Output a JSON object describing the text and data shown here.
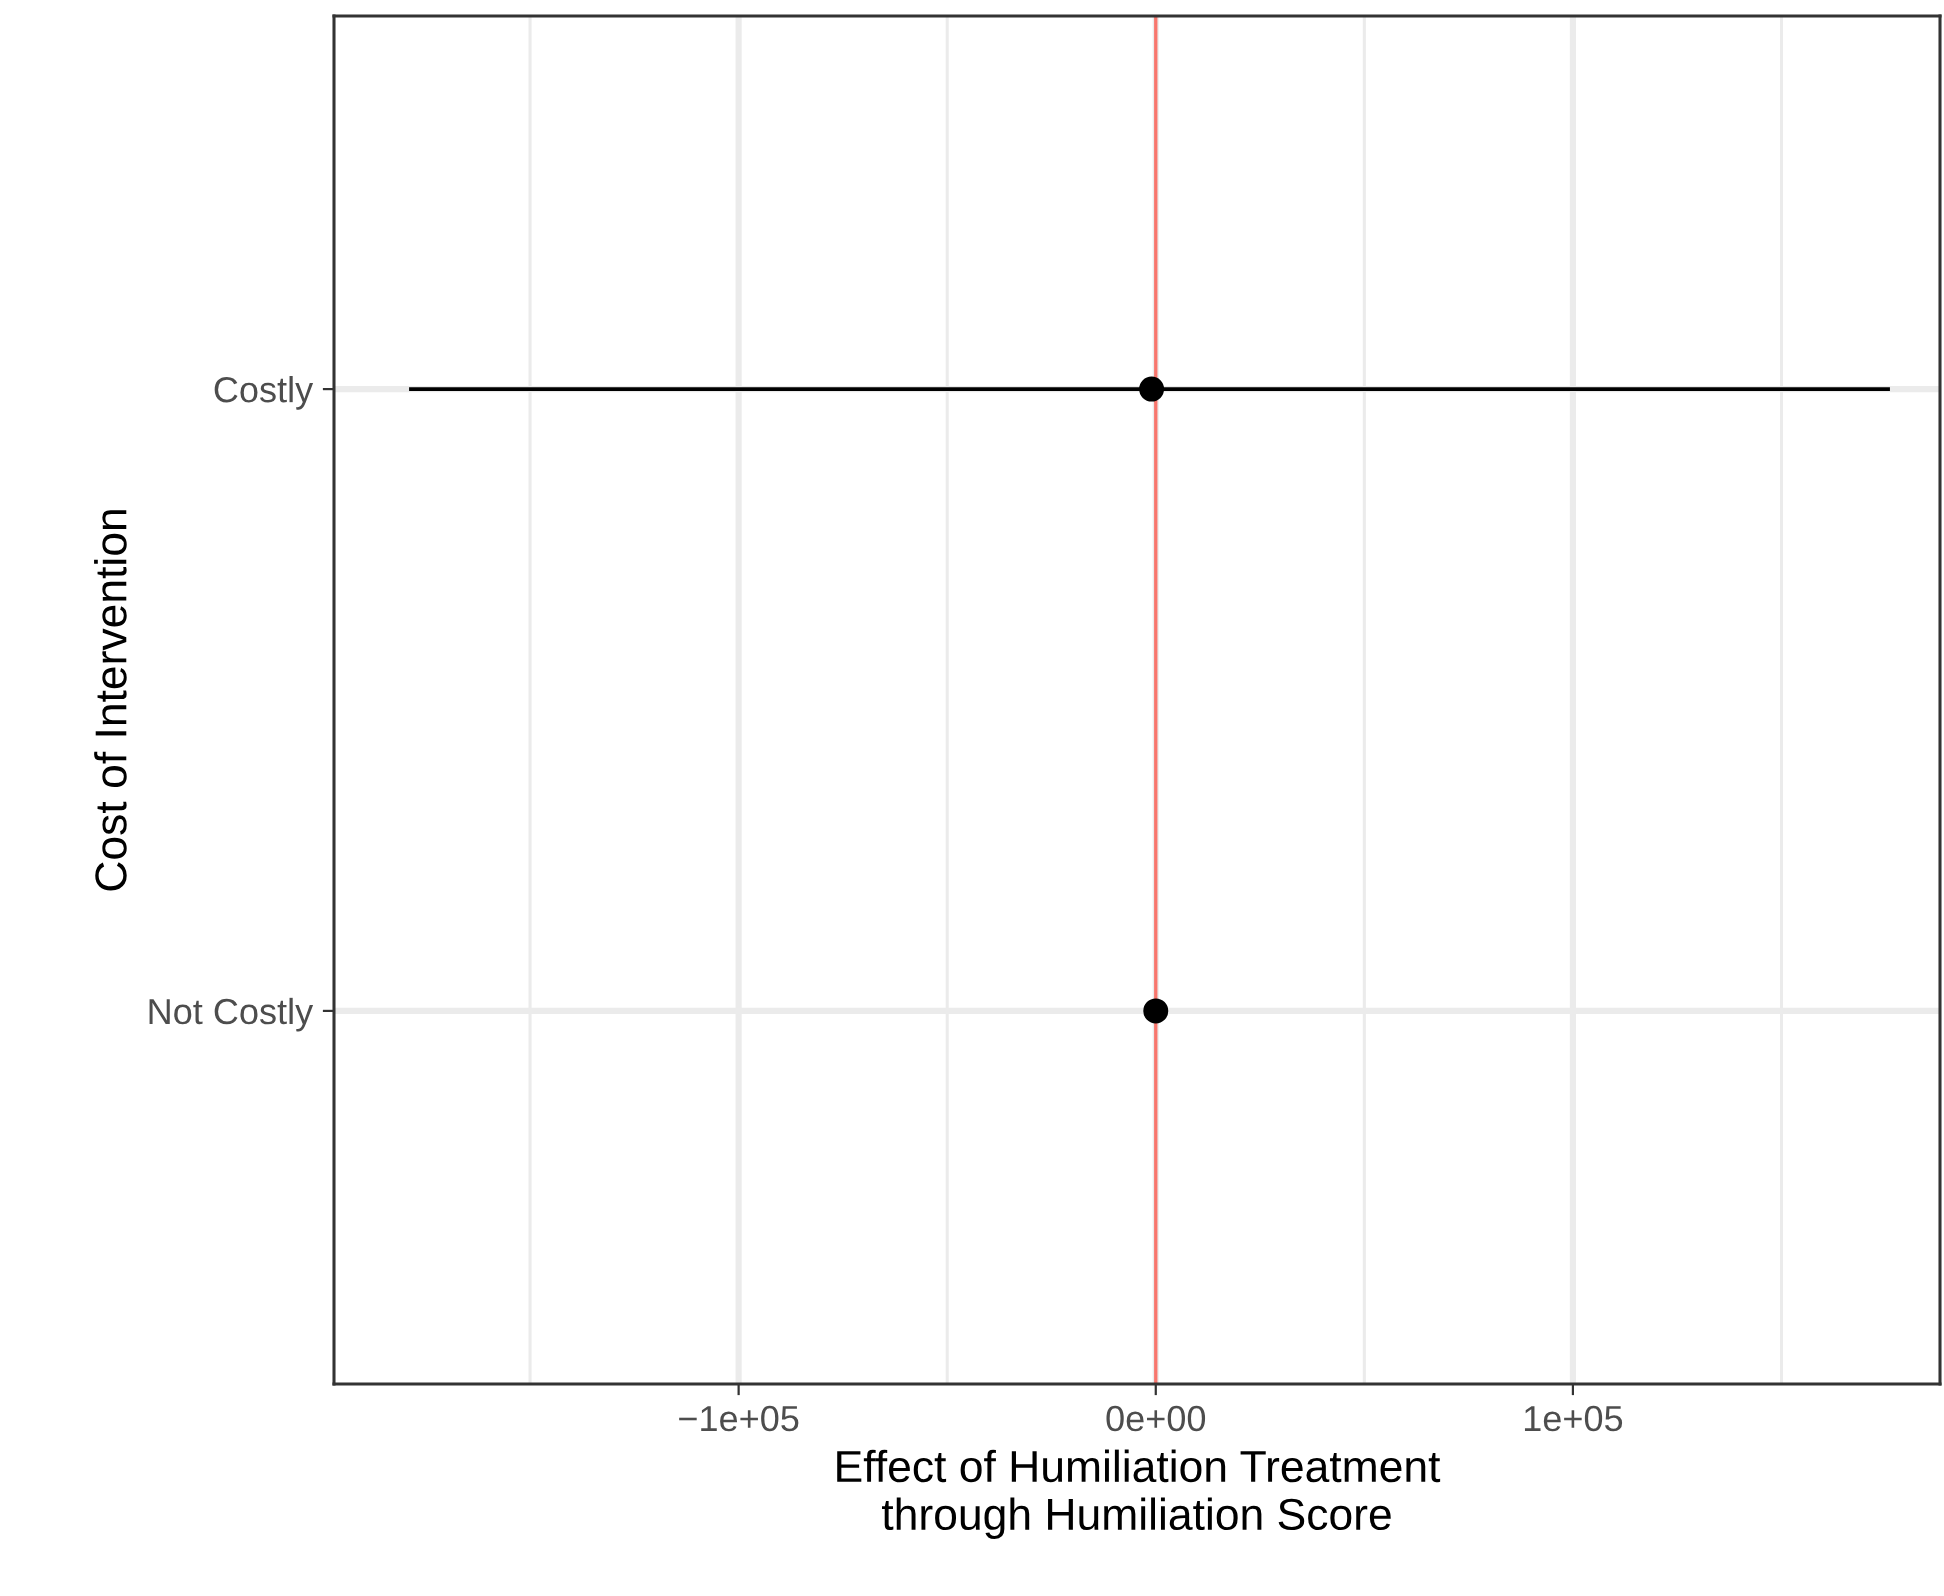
{
  "chart_data": {
    "type": "scatter",
    "orientation": "horizontal",
    "categories": [
      "Costly",
      "Not Costly"
    ],
    "values": [
      -1000,
      0
    ],
    "errors": [
      [
        -179000,
        176000
      ],
      null
    ],
    "color": "#000000",
    "marker": "circle",
    "xlabel": "Effect of Humiliation Treatment\nthrough Humiliation Score",
    "ylabel": "Cost of Intervention",
    "xlim": [
      -197000,
      188000
    ],
    "xticks": [
      {
        "value": -150000,
        "label": null
      },
      {
        "value": -100000,
        "label": "−1e+05"
      },
      {
        "value": -50000,
        "label": null
      },
      {
        "value": 0,
        "label": "0e+00"
      },
      {
        "value": 50000,
        "label": null
      },
      {
        "value": 100000,
        "label": "1e+05"
      },
      {
        "value": 150000,
        "label": null
      }
    ],
    "grid": true,
    "ref_lines": [
      {
        "axis": "x",
        "value": 0,
        "color": "#f8766d"
      }
    ]
  }
}
